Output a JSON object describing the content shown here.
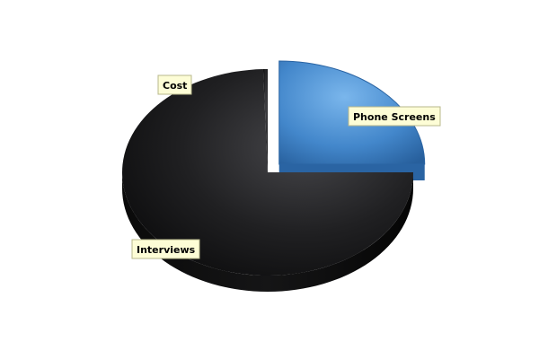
{
  "chart_data": {
    "type": "pie",
    "style": "3d-exploded",
    "legend": "none",
    "slices": [
      {
        "label": "Phone Screens",
        "value": 0.25,
        "color": "#3d7fc4",
        "exploded": true
      },
      {
        "label": "Interviews",
        "value": 0.745,
        "color": "#1c1c1e",
        "exploded": false
      },
      {
        "label": "Cost",
        "value": 0.005,
        "color": "#1c1c1e",
        "exploded": false
      }
    ]
  }
}
